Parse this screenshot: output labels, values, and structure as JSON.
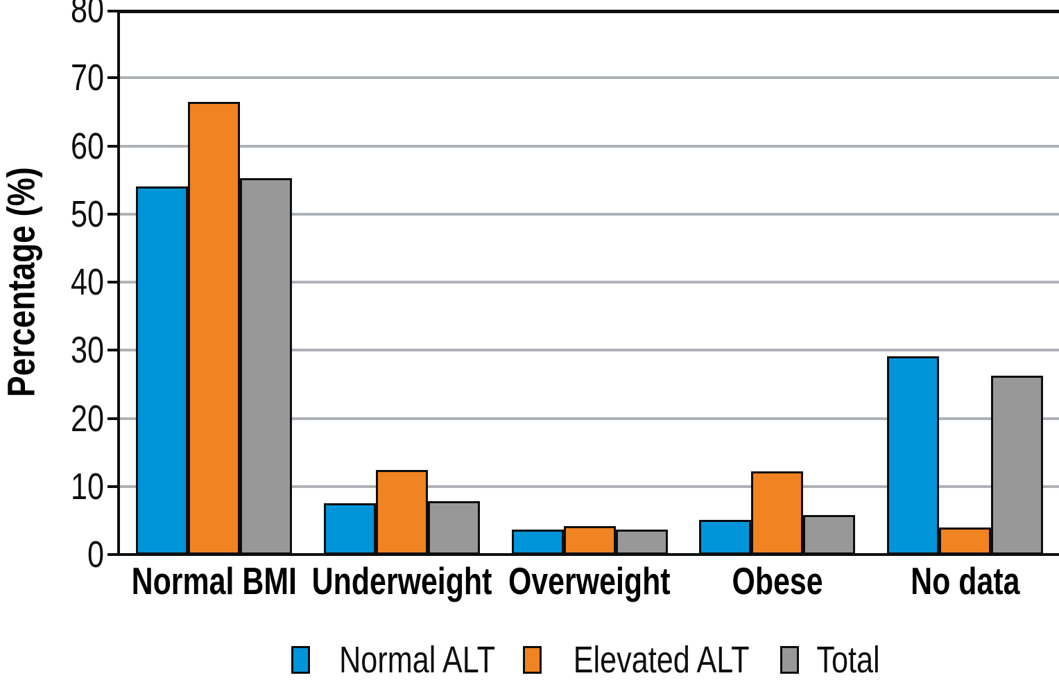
{
  "chart_data": {
    "type": "bar",
    "title": "",
    "categories": [
      "Normal BMI",
      "Underweight",
      "Overweight",
      "Obese",
      "No data"
    ],
    "series": [
      {
        "name": "Normal ALT",
        "color": "#0095D9",
        "values": [
          54.0,
          7.5,
          3.7,
          5.1,
          29.1
        ]
      },
      {
        "name": "Elevated ALT",
        "color": "#F18322",
        "values": [
          66.5,
          12.4,
          4.2,
          12.2,
          4.0
        ]
      },
      {
        "name": "Total",
        "color": "#989898",
        "values": [
          55.3,
          7.8,
          3.7,
          5.8,
          26.3
        ]
      }
    ],
    "xlabel": "",
    "ylabel": "Percentage (%)",
    "ylim": [
      0,
      80
    ],
    "yticks": [
      0,
      10,
      20,
      30,
      40,
      50,
      60,
      70,
      80
    ],
    "grid": true,
    "legend_position": "bottom"
  },
  "styles": {
    "background": "#FFFFFF",
    "axis_color": "#0D0E0F",
    "gridline_color": "#AEB2B6",
    "bar_border_color": "#0D0E0F"
  }
}
